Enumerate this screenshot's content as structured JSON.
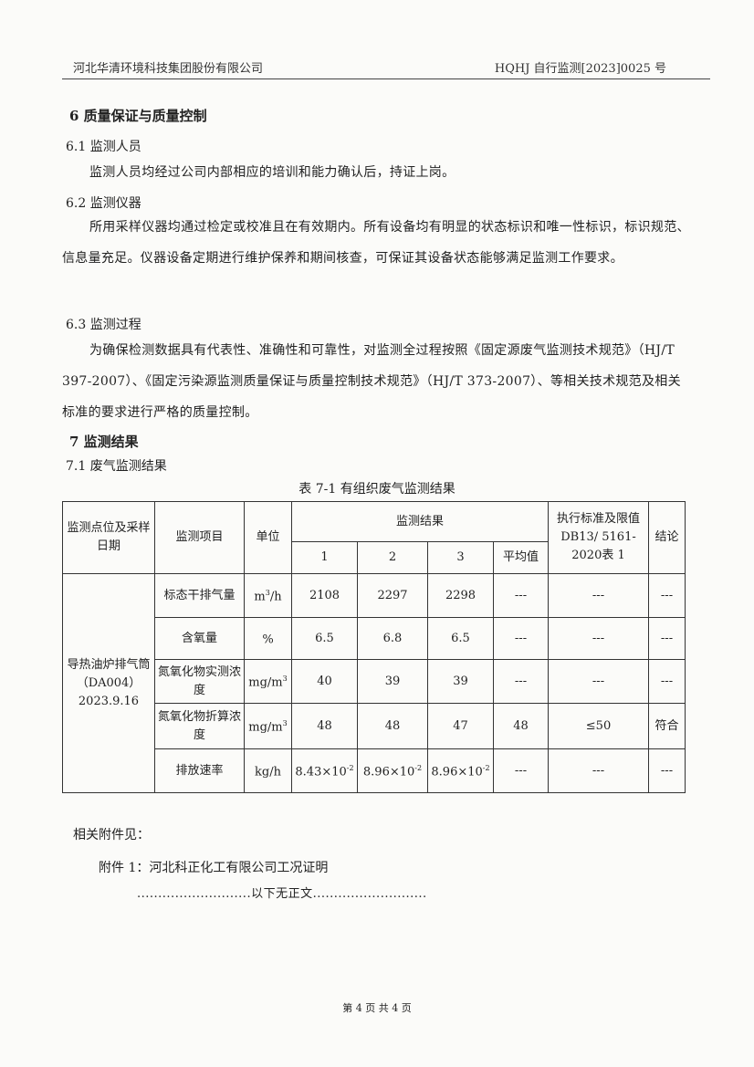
{
  "header": {
    "company": "河北华清环境科技集团股份有限公司",
    "report_no": "HQHJ 自行监测[2023]0025 号"
  },
  "sections": {
    "s6": "6 质量保证与质量控制",
    "s61": "6.1 监测人员",
    "s61_text": "监测人员均经过公司内部相应的培训和能力确认后，持证上岗。",
    "s62": "6.2 监测仪器",
    "s62_text": "所用采样仪器均通过检定或校准且在有效期内。所有设备均有明显的状态标识和唯一性标识，标识规范、信息量充足。仪器设备定期进行维护保养和期间核查，可保证其设备状态能够满足监测工作要求。",
    "s63": "6.3 监测过程",
    "s63_text": "为确保检测数据具有代表性、准确性和可靠性，对监测全过程按照《固定源废气监测技术规范》（HJ/T 397-2007）、《固定污染源监测质量保证与质量控制技术规范》（HJ/T 373-2007）、等相关技术规范及相关标准的要求进行严格的质量控制。",
    "s7": "7 监测结果",
    "s71": "7.1 废气监测结果"
  },
  "table": {
    "caption": "表 7-1 有组织废气监测结果",
    "headers": {
      "point": "监测点位及采样日期",
      "item": "监测项目",
      "unit": "单位",
      "results": "监测结果",
      "r1": "1",
      "r2": "2",
      "r3": "3",
      "avg": "平均值",
      "standard": "执行标准及限值DB13/ 5161-2020表 1",
      "conclusion": "结论"
    },
    "point": "导热油炉排气筒（DA004）2023.9.16",
    "rows": [
      {
        "item": "标态干排气量",
        "unit_base": "m",
        "unit_sup": "3",
        "unit_tail": "/h",
        "v1": "2108",
        "v2": "2297",
        "v3": "2298",
        "avg": "---",
        "std": "---",
        "res": "---"
      },
      {
        "item": "含氧量",
        "unit_base": "%",
        "unit_sup": "",
        "unit_tail": "",
        "v1": "6.5",
        "v2": "6.8",
        "v3": "6.5",
        "avg": "---",
        "std": "---",
        "res": "---"
      },
      {
        "item": "氮氧化物实测浓度",
        "unit_base": "mg/m",
        "unit_sup": "3",
        "unit_tail": "",
        "v1": "40",
        "v2": "39",
        "v3": "39",
        "avg": "---",
        "std": "---",
        "res": "---"
      },
      {
        "item": "氮氧化物折算浓度",
        "unit_base": "mg/m",
        "unit_sup": "3",
        "unit_tail": "",
        "v1": "48",
        "v2": "48",
        "v3": "47",
        "avg": "48",
        "std": "≤50",
        "res": "符合"
      },
      {
        "item": "排放速率",
        "unit_base": "kg/h",
        "unit_sup": "",
        "unit_tail": "",
        "v1": "8.43×10",
        "v1s": "-2",
        "v2": "8.96×10",
        "v2s": "-2",
        "v3": "8.96×10",
        "v3s": "-2",
        "avg": "---",
        "std": "---",
        "res": "---"
      }
    ]
  },
  "attachments": {
    "label": "相关附件见：",
    "item1": "附件 1：河北科正化工有限公司工况证明",
    "end": "...........................以下无正文..........................."
  },
  "footer": {
    "page": "第 4 页 共 4 页"
  }
}
